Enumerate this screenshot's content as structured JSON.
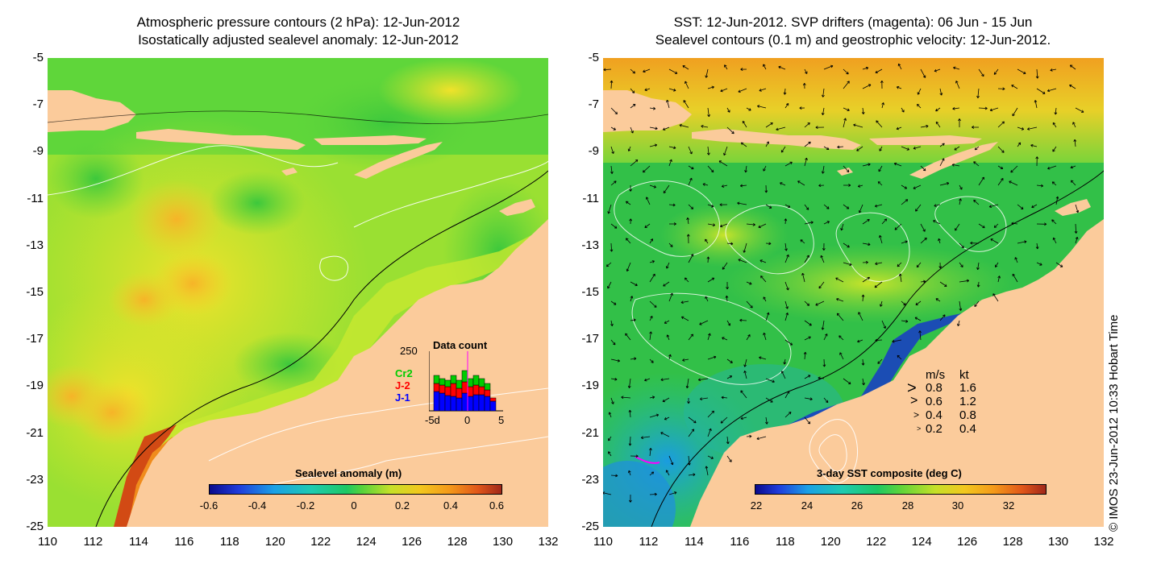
{
  "left_panel": {
    "title_line1": "Atmospheric pressure contours (2 hPa): 12-Jun-2012",
    "title_line2": "Isostatically adjusted sealevel anomaly: 12-Jun-2012",
    "colorbar": {
      "title": "Sealevel anomaly (m)",
      "labels": [
        "-0.6",
        "-0.4",
        "-0.2",
        "0",
        "0.2",
        "0.4",
        "0.6"
      ]
    },
    "data_count": {
      "title": "Data count",
      "ymax_label": "250",
      "legend": [
        "Cr2",
        "J-2",
        "J-1"
      ],
      "legend_colors": [
        "#00cc00",
        "#ff0000",
        "#0000ff"
      ],
      "x_labels": [
        "-5d",
        "0",
        "5"
      ]
    }
  },
  "right_panel": {
    "title_line1": "SST: 12-Jun-2012. SVP drifters (magenta): 06 Jun - 15 Jun",
    "title_line2": "Sealevel contours (0.1 m) and geostrophic velocity: 12-Jun-2012.",
    "colorbar": {
      "title": "3-day SST composite (deg C)",
      "labels": [
        "22",
        "24",
        "26",
        "28",
        "30",
        "32"
      ]
    },
    "velocity_key": {
      "header_ms": "m/s",
      "header_kt": "kt",
      "rows": [
        {
          "ms": "0.8",
          "kt": "1.6"
        },
        {
          "ms": "0.6",
          "kt": "1.2"
        },
        {
          "ms": "0.4",
          "kt": "0.8"
        },
        {
          "ms": "0.2",
          "kt": "0.4"
        }
      ]
    }
  },
  "axes": {
    "y_labels": [
      "-5",
      "-7",
      "-9",
      "-11",
      "-13",
      "-15",
      "-17",
      "-19",
      "-21",
      "-23",
      "-25"
    ],
    "x_labels": [
      "110",
      "112",
      "114",
      "116",
      "118",
      "120",
      "122",
      "124",
      "126",
      "128",
      "130",
      "132"
    ]
  },
  "credit": "© IMOS 23-Jun-2012 10:33 Hobart Time"
}
